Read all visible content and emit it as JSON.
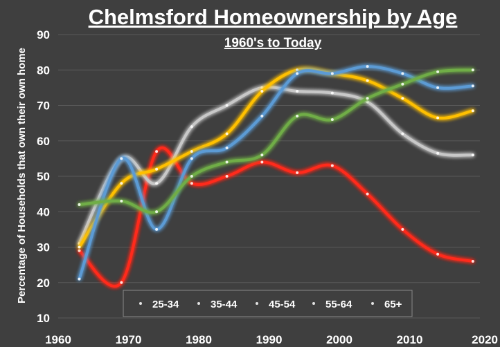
{
  "chart_data": {
    "type": "line",
    "title": "Chelmsford Homeownership by Age",
    "subtitle": "1960's to Today",
    "xlabel": "",
    "ylabel": "Percentage of Households that own their own home",
    "xlim": [
      1960,
      2020
    ],
    "ylim": [
      10,
      90
    ],
    "x_ticks": [
      "1960",
      "1970",
      "1980",
      "1990",
      "2000",
      "2010",
      "2020"
    ],
    "y_ticks": [
      "10",
      "20",
      "30",
      "40",
      "50",
      "60",
      "70",
      "80",
      "90"
    ],
    "grid": true,
    "legend_position": "bottom",
    "x": [
      1963,
      1969,
      1974,
      1979,
      1984,
      1989,
      1994,
      1999,
      2004,
      2009,
      2014,
      2019
    ],
    "series": [
      {
        "name": "25-34",
        "color": "#ff2a1a",
        "values": [
          29,
          20,
          57,
          48,
          50,
          54,
          51,
          53,
          45,
          35,
          28,
          26
        ]
      },
      {
        "name": "35-44",
        "color": "#c8c8c8",
        "values": [
          31,
          55,
          48,
          64,
          70,
          75,
          74,
          73.5,
          71,
          62,
          56.5,
          56
        ]
      },
      {
        "name": "45-54",
        "color": "#ffc000",
        "values": [
          30,
          48,
          52,
          57,
          62,
          74,
          80,
          79,
          77,
          72,
          66.5,
          68.5
        ]
      },
      {
        "name": "55-64",
        "color": "#5b9bd5",
        "values": [
          21,
          55,
          35,
          55,
          58,
          67,
          79,
          79,
          81,
          79,
          75,
          75.5
        ]
      },
      {
        "name": "65+",
        "color": "#70ad47",
        "values": [
          42,
          43,
          40,
          50,
          54,
          56,
          67,
          66,
          72,
          76,
          79.5,
          80
        ]
      }
    ]
  }
}
